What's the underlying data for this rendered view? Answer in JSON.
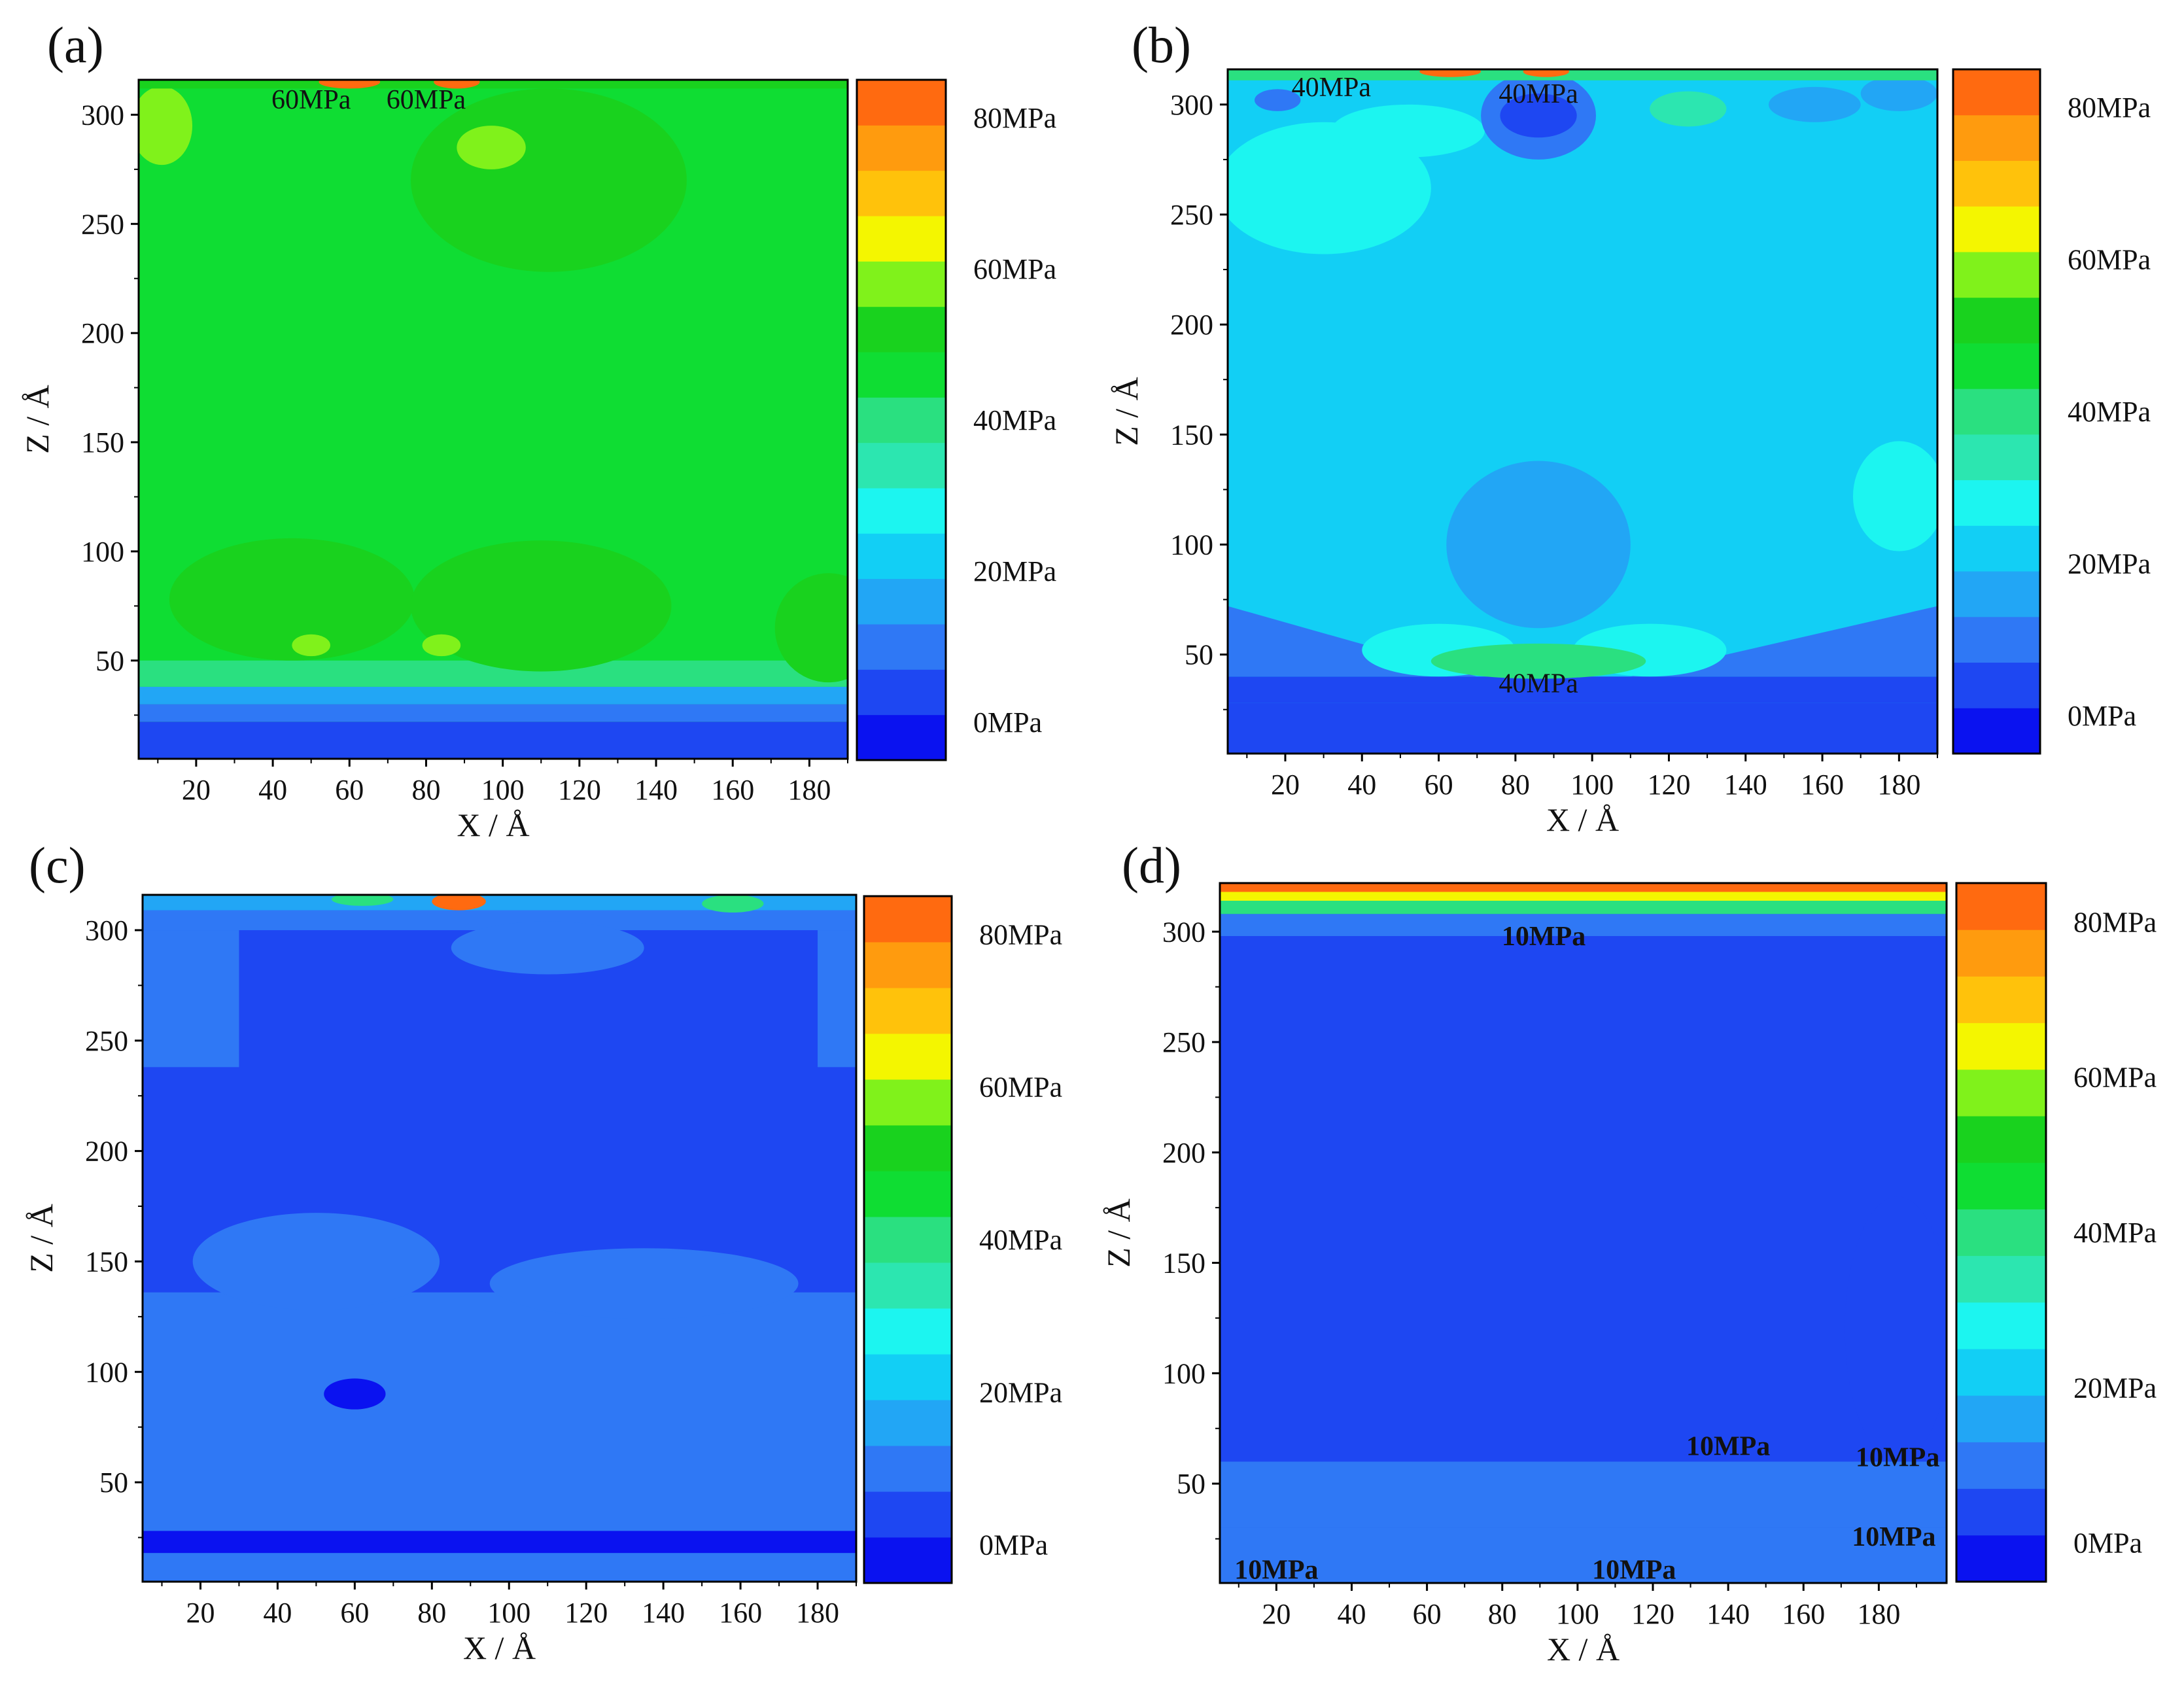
{
  "figure": {
    "panels": [
      "(a)",
      "(b)",
      "(c)",
      "(d)"
    ]
  },
  "chart_data": [
    {
      "panel": "(a)",
      "type": "heatmap",
      "title": "",
      "xlabel": "X / Å",
      "ylabel": "Z / Å",
      "xlim": [
        5,
        190
      ],
      "ylim": [
        5,
        316
      ],
      "xticks": [
        "20",
        "40",
        "60",
        "80",
        "100",
        "120",
        "140",
        "160",
        "180"
      ],
      "xtick_values": [
        20,
        40,
        60,
        80,
        100,
        120,
        140,
        160,
        180
      ],
      "yticks": [
        "50",
        "100",
        "150",
        "200",
        "250",
        "300"
      ],
      "ytick_values": [
        50,
        100,
        150,
        200,
        250,
        300
      ],
      "colorbar": {
        "range_mpa": [
          -5,
          85
        ],
        "levels": 15,
        "labels": [
          "0MPa",
          "20MPa",
          "40MPa",
          "60MPa",
          "80MPa"
        ],
        "label_values": [
          0,
          20,
          40,
          60,
          80
        ]
      },
      "dominant_stress_mpa": 45,
      "annotations": [
        {
          "text": "60MPa",
          "x": 50,
          "z": 307
        },
        {
          "text": "60MPa",
          "x": 80,
          "z": 307
        }
      ]
    },
    {
      "panel": "(b)",
      "type": "heatmap",
      "title": "",
      "xlabel": "X / Å",
      "ylabel": "Z / Å",
      "xlim": [
        5,
        190
      ],
      "ylim": [
        5,
        316
      ],
      "xticks": [
        "20",
        "40",
        "60",
        "80",
        "100",
        "120",
        "140",
        "160",
        "180"
      ],
      "xtick_values": [
        20,
        40,
        60,
        80,
        100,
        120,
        140,
        160,
        180
      ],
      "yticks": [
        "50",
        "100",
        "150",
        "200",
        "250",
        "300"
      ],
      "ytick_values": [
        50,
        100,
        150,
        200,
        250,
        300
      ],
      "colorbar": {
        "range_mpa": [
          -5,
          85
        ],
        "levels": 15,
        "labels": [
          "0MPa",
          "20MPa",
          "40MPa",
          "60MPa",
          "80MPa"
        ],
        "label_values": [
          0,
          20,
          40,
          60,
          80
        ]
      },
      "dominant_stress_mpa": 22,
      "annotations": [
        {
          "text": "40MPa",
          "x": 32,
          "z": 308
        },
        {
          "text": "40MPa",
          "x": 86,
          "z": 305
        },
        {
          "text": "40MPa",
          "x": 86,
          "z": 37
        }
      ]
    },
    {
      "panel": "(c)",
      "type": "heatmap",
      "title": "",
      "xlabel": "X / Å",
      "ylabel": "Z / Å",
      "xlim": [
        5,
        190
      ],
      "ylim": [
        5,
        316
      ],
      "xticks": [
        "20",
        "40",
        "60",
        "80",
        "100",
        "120",
        "140",
        "160",
        "180"
      ],
      "xtick_values": [
        20,
        40,
        60,
        80,
        100,
        120,
        140,
        160,
        180
      ],
      "yticks": [
        "50",
        "100",
        "150",
        "200",
        "250",
        "300"
      ],
      "ytick_values": [
        50,
        100,
        150,
        200,
        250,
        300
      ],
      "colorbar": {
        "range_mpa": [
          -5,
          85
        ],
        "levels": 15,
        "labels": [
          "0MPa",
          "20MPa",
          "40MPa",
          "60MPa",
          "80MPa"
        ],
        "label_values": [
          0,
          20,
          40,
          60,
          80
        ]
      },
      "dominant_stress_mpa": 2,
      "annotations": []
    },
    {
      "panel": "(d)",
      "type": "heatmap",
      "title": "",
      "xlabel": "X / Å",
      "ylabel": "Z / Å",
      "xlim": [
        5,
        198
      ],
      "ylim": [
        5,
        322
      ],
      "xticks": [
        "20",
        "40",
        "60",
        "80",
        "100",
        "120",
        "140",
        "160",
        "180"
      ],
      "xtick_values": [
        20,
        40,
        60,
        80,
        100,
        120,
        140,
        160,
        180
      ],
      "yticks": [
        "50",
        "100",
        "150",
        "200",
        "250",
        "300"
      ],
      "ytick_values": [
        50,
        100,
        150,
        200,
        250,
        300
      ],
      "colorbar": {
        "range_mpa": [
          -5,
          85
        ],
        "levels": 15,
        "labels": [
          "0MPa",
          "20MPa",
          "40MPa",
          "60MPa",
          "80MPa"
        ],
        "label_values": [
          0,
          20,
          40,
          60,
          80
        ]
      },
      "dominant_stress_mpa": 2,
      "annotations": [
        {
          "text": "10MPa",
          "x": 91,
          "z": 298
        },
        {
          "text": "10MPa",
          "x": 140,
          "z": 67
        },
        {
          "text": "10MPa",
          "x": 185,
          "z": 62
        },
        {
          "text": "10MPa",
          "x": 184,
          "z": 26
        },
        {
          "text": "10MPa",
          "x": 20,
          "z": 11
        },
        {
          "text": "10MPa",
          "x": 115,
          "z": 11
        }
      ]
    }
  ]
}
